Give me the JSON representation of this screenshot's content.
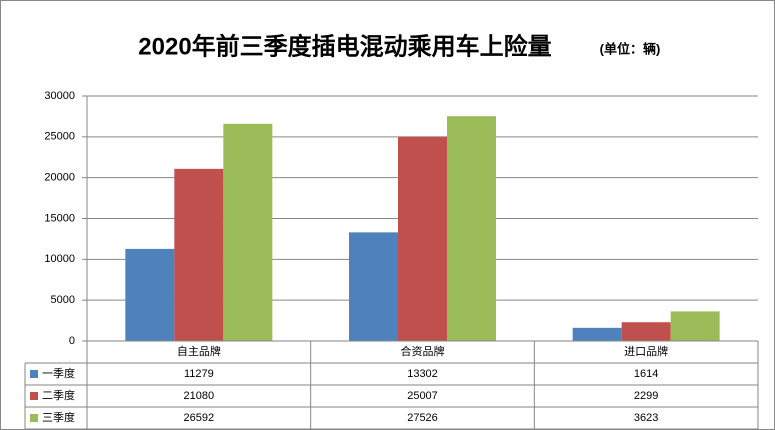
{
  "chart_data": {
    "type": "bar",
    "title": "2020年前三季度插电混动乘用车上险量",
    "subtitle": "(单位：辆)",
    "categories": [
      "自主品牌",
      "合资品牌",
      "进口品牌"
    ],
    "series": [
      {
        "name": "一季度",
        "color": "#4f81bd",
        "values": [
          11279,
          13302,
          1614
        ]
      },
      {
        "name": "二季度",
        "color": "#c0504d",
        "values": [
          21080,
          25007,
          2299
        ]
      },
      {
        "name": "三季度",
        "color": "#9bbb59",
        "values": [
          26592,
          27526,
          3623
        ]
      }
    ],
    "ylim": [
      0,
      30000
    ],
    "yticks": [
      0,
      5000,
      10000,
      15000,
      20000,
      25000,
      30000
    ],
    "grid": true
  }
}
